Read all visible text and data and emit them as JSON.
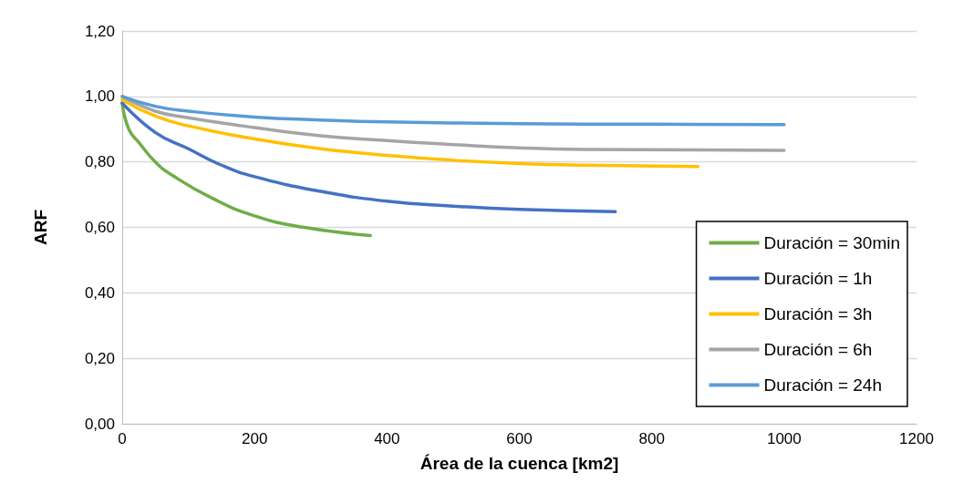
{
  "chart_data": {
    "type": "line",
    "xlabel": "Área de la cuenca [km2]",
    "ylabel": "ARF",
    "xlim": [
      0,
      1200
    ],
    "xticks": [
      0,
      200,
      400,
      600,
      800,
      1000,
      1200
    ],
    "ylim": [
      0,
      1.2
    ],
    "yticks": [
      {
        "value": 0,
        "label": "0,00"
      },
      {
        "value": 0.2,
        "label": "0,20"
      },
      {
        "value": 0.4,
        "label": "0,40"
      },
      {
        "value": 0.6,
        "label": "0,60"
      },
      {
        "value": 0.8,
        "label": "0,80"
      },
      {
        "value": 1.0,
        "label": "1,00"
      },
      {
        "value": 1.2,
        "label": "1,20"
      }
    ],
    "grid": "y",
    "legend": "bottom right",
    "marker": "none",
    "line_style": "solid",
    "series": [
      {
        "name": "Duración = 30min",
        "color": "#70ad47",
        "x": [
          0,
          10,
          25,
          50,
          75,
          135,
          200,
          275,
          375
        ],
        "values": [
          0.98,
          0.9,
          0.86,
          0.8,
          0.76,
          0.69,
          0.635,
          0.6,
          0.575
        ]
      },
      {
        "name": "Duración = 1h",
        "color": "#4472c4",
        "x": [
          0,
          50,
          100,
          150,
          200,
          300,
          400,
          500,
          600,
          745
        ],
        "values": [
          0.98,
          0.89,
          0.84,
          0.79,
          0.755,
          0.71,
          0.68,
          0.665,
          0.655,
          0.648
        ]
      },
      {
        "name": "Duración = 3h",
        "color": "#ffc000",
        "x": [
          0,
          50,
          100,
          200,
          300,
          400,
          500,
          600,
          700,
          870
        ],
        "values": [
          0.99,
          0.94,
          0.91,
          0.87,
          0.84,
          0.82,
          0.805,
          0.795,
          0.79,
          0.786
        ]
      },
      {
        "name": "Duración = 6h",
        "color": "#a5a5a5",
        "x": [
          0,
          50,
          100,
          200,
          300,
          400,
          500,
          600,
          700,
          1000
        ],
        "values": [
          1.0,
          0.955,
          0.935,
          0.905,
          0.88,
          0.865,
          0.853,
          0.843,
          0.838,
          0.835
        ]
      },
      {
        "name": "Duración = 24h",
        "color": "#5b9bd5",
        "x": [
          0,
          50,
          100,
          200,
          300,
          400,
          600,
          800,
          1000
        ],
        "values": [
          1.0,
          0.97,
          0.955,
          0.937,
          0.928,
          0.922,
          0.917,
          0.915,
          0.914
        ]
      }
    ]
  }
}
